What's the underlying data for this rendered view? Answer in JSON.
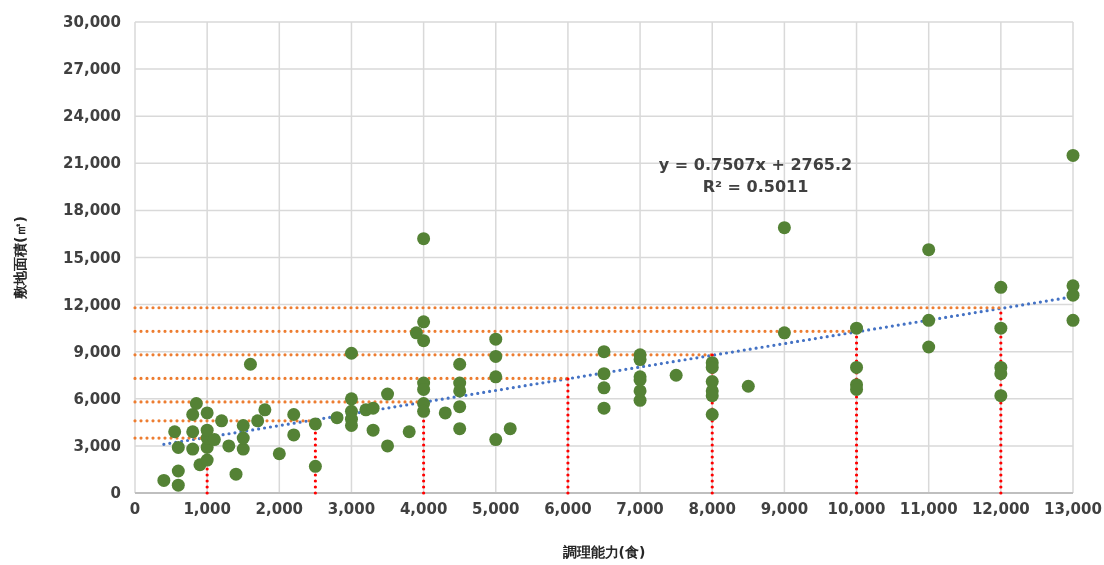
{
  "chart_data": {
    "type": "scatter",
    "xlabel": "調理能力(食)",
    "ylabel": "敷地面積(㎡)",
    "xlim": [
      0,
      13000
    ],
    "xticks": [
      {
        "value": 0,
        "label": "0"
      },
      {
        "value": 1000,
        "label": "1,000"
      },
      {
        "value": 2000,
        "label": "2,000"
      },
      {
        "value": 3000,
        "label": "3,000"
      },
      {
        "value": 4000,
        "label": "4,000"
      },
      {
        "value": 5000,
        "label": "5,000"
      },
      {
        "value": 6000,
        "label": "6,000"
      },
      {
        "value": 7000,
        "label": "7,000"
      },
      {
        "value": 8000,
        "label": "8,000"
      },
      {
        "value": 9000,
        "label": "9,000"
      },
      {
        "value": 10000,
        "label": "10,000"
      },
      {
        "value": 11000,
        "label": "11,000"
      },
      {
        "value": 12000,
        "label": "12,000"
      },
      {
        "value": 13000,
        "label": "13,000"
      }
    ],
    "ylim": [
      0,
      30000
    ],
    "yticks": [
      {
        "value": 0,
        "label": "0"
      },
      {
        "value": 3000,
        "label": "3,000"
      },
      {
        "value": 6000,
        "label": "6,000"
      },
      {
        "value": 9000,
        "label": "9,000"
      },
      {
        "value": 12000,
        "label": "12,000"
      },
      {
        "value": 15000,
        "label": "15,000"
      },
      {
        "value": 18000,
        "label": "18,000"
      },
      {
        "value": 21000,
        "label": "21,000"
      },
      {
        "value": 24000,
        "label": "24,000"
      },
      {
        "value": 27000,
        "label": "27,000"
      },
      {
        "value": 30000,
        "label": "30,000"
      }
    ],
    "grid": true,
    "annotations": [
      "y = 0.7507x + 2765.2",
      "R² = 0.5011"
    ],
    "series": [
      {
        "type": "scatter",
        "marker": "circle",
        "color": "#548235",
        "x": [
          400,
          600,
          600,
          550,
          600,
          800,
          800,
          800,
          850,
          900,
          1000,
          1000,
          1000,
          1000,
          1000,
          1100,
          1200,
          1300,
          1400,
          1500,
          1500,
          1500,
          1600,
          1700,
          1800,
          2000,
          2200,
          2200,
          2500,
          2500,
          2800,
          3000,
          3000,
          3000,
          3000,
          3000,
          3200,
          3300,
          3300,
          3500,
          3500,
          3800,
          3900,
          4000,
          4000,
          4000,
          4000,
          4000,
          4000,
          4000,
          4300,
          4500,
          4500,
          4500,
          4500,
          4500,
          5000,
          5000,
          5000,
          5000,
          5200,
          6500,
          6500,
          6500,
          6500,
          7000,
          7000,
          7000,
          7000,
          7000,
          7000,
          7500,
          8000,
          8000,
          8000,
          8000,
          8000,
          8000,
          8500,
          9000,
          9000,
          10000,
          10000,
          10000,
          10000,
          11000,
          11000,
          11000,
          12000,
          12000,
          12000,
          12000,
          12000,
          13000,
          13000,
          13000,
          13000
        ],
        "values": [
          800,
          500,
          1400,
          3900,
          2900,
          2800,
          3900,
          5000,
          5700,
          1800,
          2100,
          2900,
          3500,
          4000,
          5100,
          3400,
          4600,
          3000,
          1200,
          2800,
          3500,
          4300,
          8200,
          4600,
          5300,
          2500,
          3700,
          5000,
          4400,
          1700,
          4800,
          8900,
          6000,
          5200,
          4700,
          4300,
          5300,
          4000,
          5400,
          3000,
          6300,
          3900,
          10200,
          16200,
          10900,
          9700,
          7000,
          6600,
          5700,
          5200,
          5100,
          8200,
          7000,
          6500,
          5500,
          4100,
          9800,
          8700,
          7400,
          3400,
          4100,
          9000,
          7600,
          6700,
          5400,
          8800,
          8500,
          7400,
          7200,
          6500,
          5900,
          7500,
          8300,
          8000,
          7100,
          6500,
          6200,
          5000,
          6800,
          16900,
          10200,
          10500,
          8000,
          6900,
          6600,
          15500,
          11000,
          9300,
          13100,
          10500,
          8000,
          7600,
          6200,
          21500,
          13200,
          12600,
          11000
        ]
      },
      {
        "type": "line",
        "line_style": "dotted",
        "color": "#4472c4",
        "x": [
          400,
          13000
        ],
        "values": [
          3100,
          12500
        ]
      },
      {
        "type": "line",
        "line_style": "dotted",
        "color": "#ed7d31",
        "x": [
          0,
          1000
        ],
        "values": [
          3500,
          3500
        ]
      },
      {
        "type": "line",
        "line_style": "dotted",
        "color": "#ed7d31",
        "x": [
          0,
          2500
        ],
        "values": [
          4600,
          4600
        ]
      },
      {
        "type": "line",
        "line_style": "dotted",
        "color": "#ed7d31",
        "x": [
          0,
          4000
        ],
        "values": [
          5800,
          5800
        ]
      },
      {
        "type": "line",
        "line_style": "dotted",
        "color": "#ed7d31",
        "x": [
          0,
          6000
        ],
        "values": [
          7300,
          7300
        ]
      },
      {
        "type": "line",
        "line_style": "dotted",
        "color": "#ed7d31",
        "x": [
          0,
          8000
        ],
        "values": [
          8800,
          8800
        ]
      },
      {
        "type": "line",
        "line_style": "dotted",
        "color": "#ed7d31",
        "x": [
          0,
          10000
        ],
        "values": [
          10300,
          10300
        ]
      },
      {
        "type": "line",
        "line_style": "dotted",
        "color": "#ed7d31",
        "x": [
          0,
          12000
        ],
        "values": [
          11800,
          11800
        ]
      },
      {
        "type": "line",
        "line_style": "dotted",
        "color": "#ff0000",
        "x": [
          1000,
          1000
        ],
        "values": [
          0,
          3500
        ]
      },
      {
        "type": "line",
        "line_style": "dotted",
        "color": "#ff0000",
        "x": [
          2500,
          2500
        ],
        "values": [
          0,
          4600
        ]
      },
      {
        "type": "line",
        "line_style": "dotted",
        "color": "#ff0000",
        "x": [
          4000,
          4000
        ],
        "values": [
          0,
          5800
        ]
      },
      {
        "type": "line",
        "line_style": "dotted",
        "color": "#ff0000",
        "x": [
          6000,
          6000
        ],
        "values": [
          0,
          7300
        ]
      },
      {
        "type": "line",
        "line_style": "dotted",
        "color": "#ff0000",
        "x": [
          8000,
          8000
        ],
        "values": [
          0,
          8800
        ]
      },
      {
        "type": "line",
        "line_style": "dotted",
        "color": "#ff0000",
        "x": [
          10000,
          10000
        ],
        "values": [
          0,
          10300
        ]
      },
      {
        "type": "line",
        "line_style": "dotted",
        "color": "#ff0000",
        "x": [
          12000,
          12000
        ],
        "values": [
          0,
          11800
        ]
      }
    ]
  }
}
